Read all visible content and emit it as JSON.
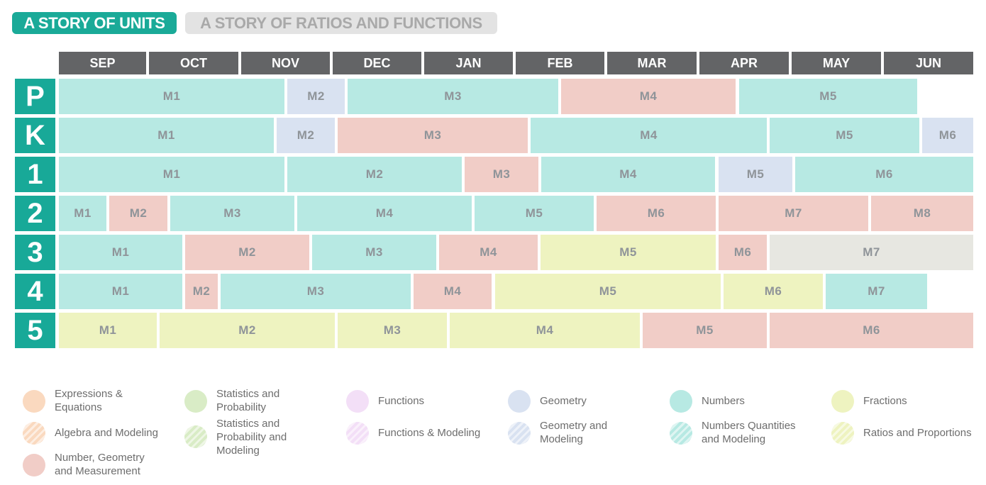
{
  "tabs": [
    {
      "label": "A STORY OF UNITS",
      "active": true
    },
    {
      "label": "A STORY OF RATIOS AND FUNCTIONS",
      "active": false
    }
  ],
  "months": [
    "SEP",
    "OCT",
    "NOV",
    "DEC",
    "JAN",
    "FEB",
    "MAR",
    "APR",
    "MAY",
    "JUN"
  ],
  "grades": [
    "P",
    "K",
    "1",
    "2",
    "3",
    "4",
    "5"
  ],
  "rows": [
    [
      {
        "label": "M1",
        "color": "teal"
      },
      {
        "label": "M2",
        "color": "blue"
      },
      {
        "label": "M3",
        "color": "teal"
      },
      {
        "label": "M4",
        "color": "pink"
      },
      {
        "label": "M5",
        "color": "teal"
      }
    ],
    [
      {
        "label": "M1",
        "color": "teal"
      },
      {
        "label": "M2",
        "color": "blue"
      },
      {
        "label": "M3",
        "color": "pink"
      },
      {
        "label": "M4",
        "color": "teal"
      },
      {
        "label": "M5",
        "color": "teal"
      },
      {
        "label": "M6",
        "color": "blue"
      }
    ],
    [
      {
        "label": "M1",
        "color": "teal"
      },
      {
        "label": "M2",
        "color": "teal"
      },
      {
        "label": "M3",
        "color": "pink"
      },
      {
        "label": "M4",
        "color": "teal"
      },
      {
        "label": "M5",
        "color": "blue"
      },
      {
        "label": "M6",
        "color": "teal"
      }
    ],
    [
      {
        "label": "M1",
        "color": "teal"
      },
      {
        "label": "M2",
        "color": "pink"
      },
      {
        "label": "M3",
        "color": "teal"
      },
      {
        "label": "M4",
        "color": "teal"
      },
      {
        "label": "M5",
        "color": "teal"
      },
      {
        "label": "M6",
        "color": "pink"
      },
      {
        "label": "M7",
        "color": "pink"
      },
      {
        "label": "M8",
        "color": "pink"
      }
    ],
    [
      {
        "label": "M1",
        "color": "teal"
      },
      {
        "label": "M2",
        "color": "pink"
      },
      {
        "label": "M3",
        "color": "teal"
      },
      {
        "label": "M4",
        "color": "pink"
      },
      {
        "label": "M5",
        "color": "yellow"
      },
      {
        "label": "M6",
        "color": "pink"
      },
      {
        "label": "M7",
        "color": "gray"
      }
    ],
    [
      {
        "label": "M1",
        "color": "teal"
      },
      {
        "label": "M2",
        "color": "pink"
      },
      {
        "label": "M3",
        "color": "teal"
      },
      {
        "label": "M4",
        "color": "pink"
      },
      {
        "label": "M5",
        "color": "yellow"
      },
      {
        "label": "M6",
        "color": "yellow"
      },
      {
        "label": "M7",
        "color": "teal"
      }
    ],
    [
      {
        "label": "M1",
        "color": "yellow"
      },
      {
        "label": "M2",
        "color": "yellow"
      },
      {
        "label": "M3",
        "color": "yellow"
      },
      {
        "label": "M4",
        "color": "yellow"
      },
      {
        "label": "M5",
        "color": "pink"
      },
      {
        "label": "M6",
        "color": "pink"
      }
    ]
  ],
  "colors": {
    "teal": "#b7e9e3",
    "blue": "#d9e2f1",
    "pink": "#f1cdc7",
    "yellow": "#eef3c0",
    "gray": "#e7e7e1",
    "accent": "#1aaa98",
    "month_header": "#636466"
  },
  "legend": [
    {
      "label": "Expressions & Equations",
      "color": "#fad9bf",
      "hatched": false
    },
    {
      "label": "Algebra and Modeling",
      "color": "#fad9bf",
      "hatched": true
    },
    {
      "label": "Number, Geometry and Measurement",
      "color": "#f1cdc7",
      "hatched": false
    },
    {
      "label": "Statistics and Probability",
      "color": "#d9ecc6",
      "hatched": false
    },
    {
      "label": "Statistics and Probability and Modeling",
      "color": "#d9ecc6",
      "hatched": true
    },
    {
      "label": "Functions",
      "color": "#f3dff7",
      "hatched": false
    },
    {
      "label": "Functions & Modeling",
      "color": "#f3dff7",
      "hatched": true
    },
    {
      "label": "Geometry",
      "color": "#d9e2f1",
      "hatched": false
    },
    {
      "label": "Geometry and Modeling",
      "color": "#d9e2f1",
      "hatched": true
    },
    {
      "label": "Numbers",
      "color": "#b7e9e3",
      "hatched": false
    },
    {
      "label": "Numbers Quantities and Modeling",
      "color": "#b7e9e3",
      "hatched": true
    },
    {
      "label": "Fractions",
      "color": "#eef3c0",
      "hatched": false
    },
    {
      "label": "Ratios and Proportions",
      "color": "#eef3c0",
      "hatched": true
    }
  ]
}
